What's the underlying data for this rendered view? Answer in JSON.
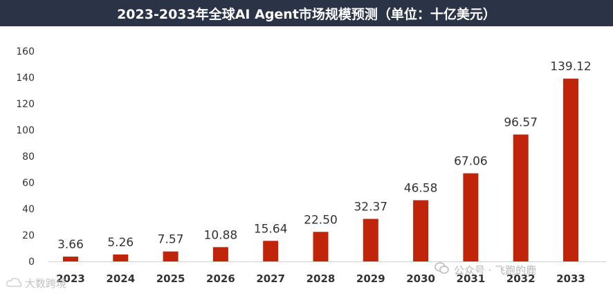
{
  "title": "2023-2033年全球AI Agent市场规模预测（单位：十亿美元）",
  "chart_data": {
    "type": "bar",
    "categories": [
      "2023",
      "2024",
      "2025",
      "2026",
      "2027",
      "2028",
      "2029",
      "2030",
      "2031",
      "2032",
      "2033"
    ],
    "values": [
      3.66,
      5.26,
      7.57,
      10.88,
      15.64,
      22.5,
      32.37,
      46.58,
      67.06,
      96.57,
      139.12
    ],
    "value_labels": [
      "3.66",
      "5.26",
      "7.57",
      "10.88",
      "15.64",
      "22.50",
      "32.37",
      "46.58",
      "67.06",
      "96.57",
      "139.12"
    ],
    "ylim": [
      0,
      160
    ],
    "yticks": [
      "0",
      "20",
      "40",
      "60",
      "80",
      "100",
      "120",
      "140",
      "160"
    ],
    "grid": false,
    "bar_color": "#c0250b"
  },
  "watermarks": {
    "left_text": "大数跨境",
    "left_icon": "cloud-logo-icon",
    "right_text": "公众号 · 飞跑的鹿",
    "right_icon": "wechat-icon"
  }
}
